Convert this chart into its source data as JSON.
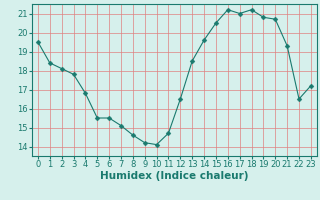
{
  "x": [
    0,
    1,
    2,
    3,
    4,
    5,
    6,
    7,
    8,
    9,
    10,
    11,
    12,
    13,
    14,
    15,
    16,
    17,
    18,
    19,
    20,
    21,
    22,
    23
  ],
  "y": [
    19.5,
    18.4,
    18.1,
    17.8,
    16.8,
    15.5,
    15.5,
    15.1,
    14.6,
    14.2,
    14.1,
    14.7,
    16.5,
    18.5,
    19.6,
    20.5,
    21.2,
    21.0,
    21.2,
    20.8,
    20.7,
    19.3,
    16.5,
    17.2
  ],
  "line_color": "#1a7a6e",
  "marker": "D",
  "marker_size": 2.5,
  "bg_color": "#d6f0ec",
  "grid_color": "#e08080",
  "xlabel": "Humidex (Indice chaleur)",
  "ylabel": "",
  "title": "",
  "xlim": [
    -0.5,
    23.5
  ],
  "ylim": [
    13.5,
    21.5
  ],
  "yticks": [
    14,
    15,
    16,
    17,
    18,
    19,
    20,
    21
  ],
  "xticks": [
    0,
    1,
    2,
    3,
    4,
    5,
    6,
    7,
    8,
    9,
    10,
    11,
    12,
    13,
    14,
    15,
    16,
    17,
    18,
    19,
    20,
    21,
    22,
    23
  ],
  "tick_fontsize": 6.0,
  "xlabel_fontsize": 7.5
}
